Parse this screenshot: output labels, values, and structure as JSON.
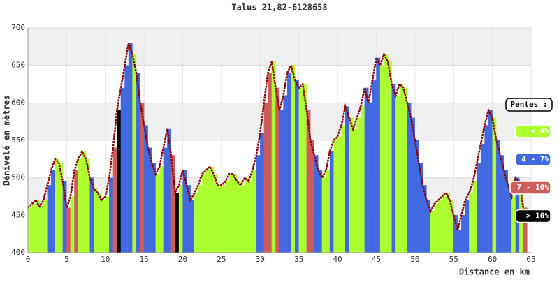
{
  "chart_data": {
    "type": "elevation-profile",
    "title": "Talus 21,82-6128658",
    "x_label": "Distance en km",
    "y_label": "Dénivelé en mètres",
    "xlim": [
      0,
      65
    ],
    "xticks": [
      0,
      5,
      10,
      15,
      20,
      25,
      30,
      35,
      40,
      45,
      50,
      55,
      60,
      65
    ],
    "ylim": [
      400,
      700
    ],
    "yticks": [
      400,
      450,
      500,
      550,
      600,
      650,
      700
    ],
    "grid": true,
    "line_color": "#8b0000",
    "legend_title": "Pentes :",
    "legend": [
      {
        "label": "< 4%",
        "color": "#adff2f"
      },
      {
        "label": "4 - 7%",
        "color": "#4169e1"
      },
      {
        "label": "7 - 10%",
        "color": "#cd5c5c"
      },
      {
        "label": "> 10%",
        "color": "#000000"
      }
    ],
    "x": [
      0,
      0.5,
      1,
      1.5,
      2,
      2.5,
      3,
      3.5,
      4,
      4.5,
      5,
      5.5,
      6,
      6.5,
      7,
      7.5,
      8,
      8.5,
      9,
      9.5,
      10,
      10.5,
      11,
      11.5,
      12,
      12.5,
      13,
      13.5,
      14,
      14.5,
      15,
      15.5,
      16,
      16.5,
      17,
      17.5,
      18,
      18.5,
      19,
      19.5,
      20,
      20.5,
      21,
      21.5,
      22,
      22.5,
      23,
      23.5,
      24,
      24.5,
      25,
      25.5,
      26,
      26.5,
      27,
      27.5,
      28,
      28.5,
      29,
      29.5,
      30,
      30.5,
      31,
      31.5,
      32,
      32.5,
      33,
      33.5,
      34,
      34.5,
      35,
      35.5,
      36,
      36.5,
      37,
      37.5,
      38,
      38.5,
      39,
      39.5,
      40,
      40.5,
      41,
      41.5,
      42,
      42.5,
      43,
      43.5,
      44,
      44.5,
      45,
      45.5,
      46,
      46.5,
      47,
      47.5,
      48,
      48.5,
      49,
      49.5,
      50,
      50.5,
      51,
      51.5,
      52,
      52.5,
      53,
      53.5,
      54,
      54.5,
      55,
      55.5,
      56,
      56.5,
      57,
      57.5,
      58,
      58.5,
      59,
      59.5,
      60,
      60.5,
      61,
      61.5,
      62,
      62.5,
      63,
      63.5,
      64
    ],
    "values": [
      460,
      465,
      470,
      462,
      470,
      490,
      510,
      525,
      520,
      495,
      460,
      475,
      510,
      525,
      535,
      525,
      500,
      485,
      480,
      470,
      475,
      500,
      540,
      590,
      620,
      650,
      680,
      665,
      640,
      600,
      570,
      540,
      520,
      505,
      515,
      540,
      565,
      530,
      480,
      490,
      510,
      490,
      470,
      480,
      490,
      505,
      510,
      515,
      505,
      490,
      490,
      495,
      505,
      505,
      495,
      490,
      500,
      495,
      510,
      530,
      560,
      600,
      640,
      655,
      620,
      590,
      610,
      640,
      650,
      630,
      620,
      625,
      590,
      550,
      530,
      510,
      500,
      510,
      535,
      550,
      555,
      570,
      595,
      580,
      565,
      580,
      595,
      620,
      600,
      630,
      660,
      650,
      665,
      655,
      625,
      610,
      625,
      620,
      600,
      580,
      550,
      520,
      490,
      470,
      455,
      465,
      470,
      475,
      480,
      470,
      450,
      430,
      450,
      470,
      480,
      495,
      520,
      545,
      570,
      590,
      580,
      550,
      530,
      510,
      490,
      475,
      500,
      495,
      460
    ],
    "colors": [
      "#adff2f",
      "#adff2f",
      "#adff2f",
      "#adff2f",
      "#adff2f",
      "#4169e1",
      "#4169e1",
      "#adff2f",
      "#adff2f",
      "#4169e1",
      "#cd5c5c",
      "#adff2f",
      "#cd5c5c",
      "#adff2f",
      "#adff2f",
      "#adff2f",
      "#4169e1",
      "#adff2f",
      "#adff2f",
      "#adff2f",
      "#adff2f",
      "#4169e1",
      "#cd5c5c",
      "#000000",
      "#4169e1",
      "#4169e1",
      "#4169e1",
      "#adff2f",
      "#4169e1",
      "#cd5c5c",
      "#4169e1",
      "#4169e1",
      "#4169e1",
      "#adff2f",
      "#adff2f",
      "#4169e1",
      "#4169e1",
      "#cd5c5c",
      "#000000",
      "#adff2f",
      "#4169e1",
      "#4169e1",
      "#4169e1",
      "#adff2f",
      "#adff2f",
      "#adff2f",
      "#adff2f",
      "#adff2f",
      "#adff2f",
      "#adff2f",
      "#adff2f",
      "#adff2f",
      "#adff2f",
      "#adff2f",
      "#adff2f",
      "#adff2f",
      "#adff2f",
      "#adff2f",
      "#adff2f",
      "#4169e1",
      "#4169e1",
      "#cd5c5c",
      "#cd5c5c",
      "#adff2f",
      "#cd5c5c",
      "#4169e1",
      "#4169e1",
      "#4169e1",
      "#adff2f",
      "#4169e1",
      "#adff2f",
      "#adff2f",
      "#cd5c5c",
      "#cd5c5c",
      "#4169e1",
      "#4169e1",
      "#adff2f",
      "#adff2f",
      "#4169e1",
      "#adff2f",
      "#adff2f",
      "#adff2f",
      "#4169e1",
      "#adff2f",
      "#adff2f",
      "#adff2f",
      "#adff2f",
      "#4169e1",
      "#4169e1",
      "#4169e1",
      "#4169e1",
      "#adff2f",
      "#adff2f",
      "#adff2f",
      "#4169e1",
      "#adff2f",
      "#adff2f",
      "#adff2f",
      "#4169e1",
      "#4169e1",
      "#4169e1",
      "#4169e1",
      "#4169e1",
      "#4169e1",
      "#adff2f",
      "#adff2f",
      "#adff2f",
      "#adff2f",
      "#adff2f",
      "#adff2f",
      "#4169e1",
      "#4169e1",
      "#4169e1",
      "#4169e1",
      "#adff2f",
      "#adff2f",
      "#4169e1",
      "#4169e1",
      "#4169e1",
      "#4169e1",
      "#adff2f",
      "#4169e1",
      "#4169e1",
      "#4169e1",
      "#4169e1",
      "#adff2f",
      "#4169e1",
      "#adff2f",
      "#cd5c5c"
    ]
  }
}
